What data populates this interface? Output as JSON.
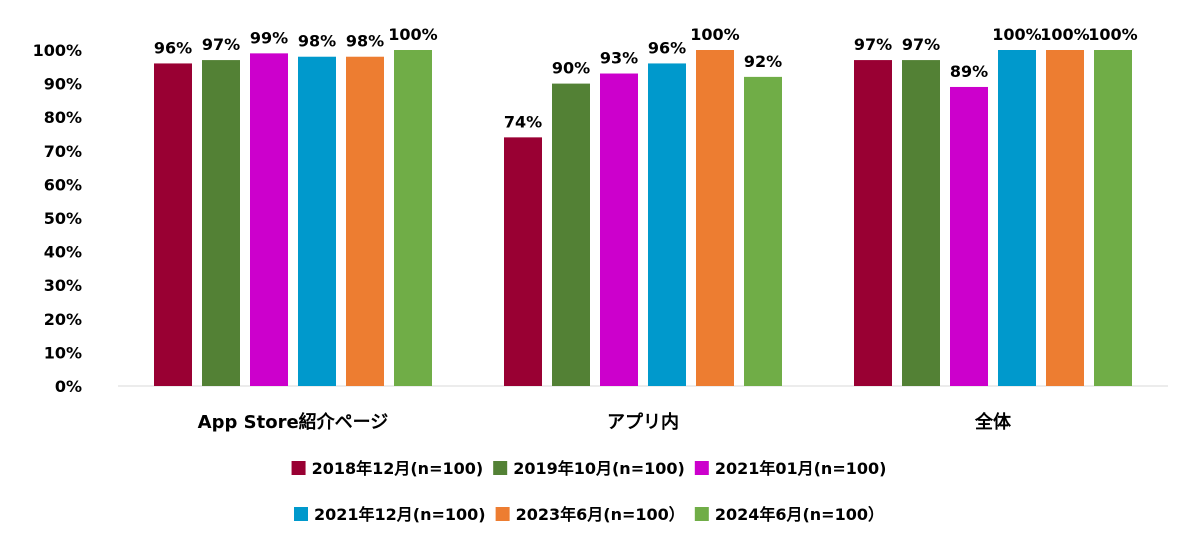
{
  "chart_data": {
    "type": "bar",
    "categories": [
      "App Store紹介ページ",
      "アプリ内",
      "全体"
    ],
    "series": [
      {
        "name": "2018年12月(n=100)",
        "color": "#990033",
        "values": [
          96,
          74,
          97
        ]
      },
      {
        "name": "2019年10月(n=100)",
        "color": "#538135",
        "values": [
          97,
          90,
          97
        ]
      },
      {
        "name": "2021年01月(n=100)",
        "color": "#CC00CC",
        "values": [
          99,
          93,
          89
        ]
      },
      {
        "name": "2021年12月(n=100)",
        "color": "#0099CC",
        "values": [
          98,
          96,
          100
        ]
      },
      {
        "name": "2023年6月(n=100）",
        "color": "#ED7D31",
        "values": [
          98,
          100,
          100
        ]
      },
      {
        "name": "2024年6月(n=100）",
        "color": "#70AD47",
        "values": [
          100,
          92,
          100
        ]
      }
    ],
    "y_ticks": [
      "0%",
      "10%",
      "20%",
      "30%",
      "40%",
      "50%",
      "60%",
      "70%",
      "80%",
      "90%",
      "100%"
    ],
    "ylim": [
      0,
      100
    ],
    "value_suffix": "%",
    "grid": false,
    "legend_position": "bottom"
  }
}
